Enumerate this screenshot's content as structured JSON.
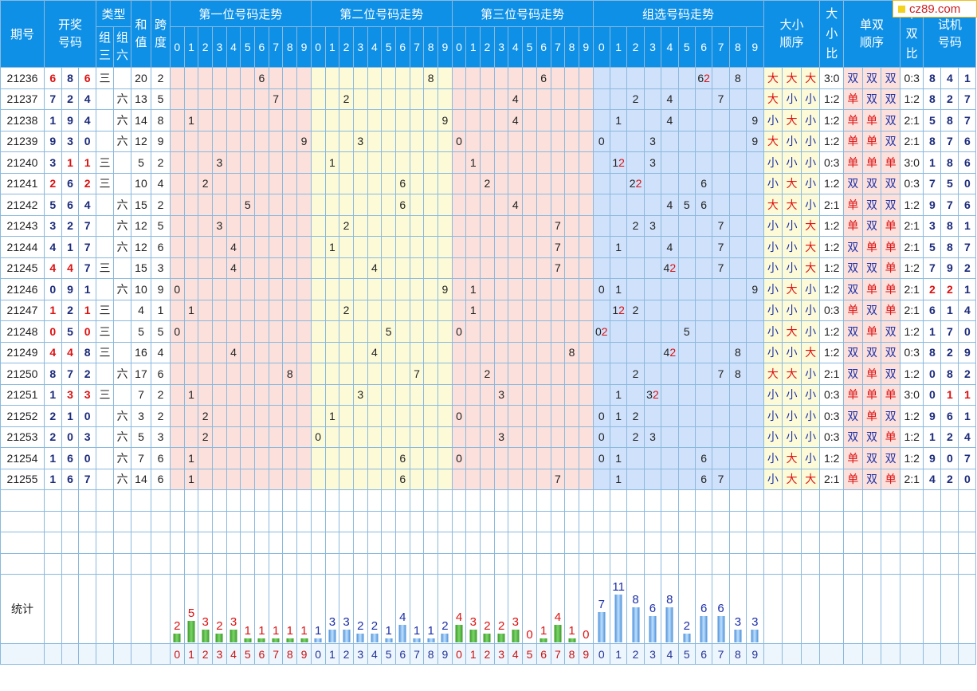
{
  "headers": {
    "period": "期号",
    "draw": "开奖号码",
    "type": "类型",
    "type_g3": "组三",
    "type_g6": "组六",
    "sum": "和值",
    "span": "跨度",
    "pos1": "第一位号码走势",
    "pos2": "第二位号码走势",
    "pos3": "第三位号码走势",
    "group": "组选号码走势",
    "dx_order": "大小顺序",
    "dx_ratio": "大小比",
    "ds_order": "单双顺序",
    "ds_ratio": "单双比",
    "trial": "试机号码",
    "digits": [
      "0",
      "1",
      "2",
      "3",
      "4",
      "5",
      "6",
      "7",
      "8",
      "9"
    ]
  },
  "logo_text": "cz89.com",
  "stat_label": "统计",
  "rows": [
    {
      "p": "21236",
      "d": [
        "6",
        "8",
        "6"
      ],
      "dr": [
        1,
        0,
        1
      ],
      "g3": "三",
      "g6": "",
      "sum": "20",
      "span": "2",
      "grp": {
        "6": [
          "6",
          "2"
        ],
        "8": [
          "8"
        ]
      },
      "dx": [
        "大",
        "大",
        "大"
      ],
      "dxr": "3:0",
      "ds": [
        "双",
        "双",
        "双"
      ],
      "dsr": "0:3",
      "sj": [
        "8",
        "4",
        "1"
      ],
      "sjr": [
        0,
        0,
        0
      ]
    },
    {
      "p": "21237",
      "d": [
        "7",
        "2",
        "4"
      ],
      "dr": [
        0,
        0,
        0
      ],
      "g3": "",
      "g6": "六",
      "sum": "13",
      "span": "5",
      "grp": {
        "2": [
          "2"
        ],
        "4": [
          "4"
        ],
        "7": [
          "7"
        ]
      },
      "dx": [
        "大",
        "小",
        "小"
      ],
      "dxr": "1:2",
      "ds": [
        "单",
        "双",
        "双"
      ],
      "dsr": "1:2",
      "sj": [
        "8",
        "2",
        "7"
      ],
      "sjr": [
        0,
        0,
        0
      ]
    },
    {
      "p": "21238",
      "d": [
        "1",
        "9",
        "4"
      ],
      "dr": [
        0,
        0,
        0
      ],
      "g3": "",
      "g6": "六",
      "sum": "14",
      "span": "8",
      "grp": {
        "1": [
          "1"
        ],
        "4": [
          "4"
        ],
        "9": [
          "9"
        ]
      },
      "dx": [
        "小",
        "大",
        "小"
      ],
      "dxr": "1:2",
      "ds": [
        "单",
        "单",
        "双"
      ],
      "dsr": "2:1",
      "sj": [
        "5",
        "8",
        "7"
      ],
      "sjr": [
        0,
        0,
        0
      ]
    },
    {
      "p": "21239",
      "d": [
        "9",
        "3",
        "0"
      ],
      "dr": [
        0,
        0,
        0
      ],
      "g3": "",
      "g6": "六",
      "sum": "12",
      "span": "9",
      "grp": {
        "0": [
          "0"
        ],
        "3": [
          "3"
        ],
        "9": [
          "9"
        ]
      },
      "dx": [
        "大",
        "小",
        "小"
      ],
      "dxr": "1:2",
      "ds": [
        "单",
        "单",
        "双"
      ],
      "dsr": "2:1",
      "sj": [
        "8",
        "7",
        "6"
      ],
      "sjr": [
        0,
        0,
        0
      ]
    },
    {
      "p": "21240",
      "d": [
        "3",
        "1",
        "1"
      ],
      "dr": [
        0,
        1,
        1
      ],
      "g3": "三",
      "g6": "",
      "sum": "5",
      "span": "2",
      "grp": {
        "1": [
          "1",
          "2"
        ],
        "3": [
          "3"
        ]
      },
      "dx": [
        "小",
        "小",
        "小"
      ],
      "dxr": "0:3",
      "ds": [
        "单",
        "单",
        "单"
      ],
      "dsr": "3:0",
      "sj": [
        "1",
        "8",
        "6"
      ],
      "sjr": [
        0,
        0,
        0
      ]
    },
    {
      "p": "21241",
      "d": [
        "2",
        "6",
        "2"
      ],
      "dr": [
        1,
        0,
        1
      ],
      "g3": "三",
      "g6": "",
      "sum": "10",
      "span": "4",
      "grp": {
        "2": [
          "2",
          "2"
        ],
        "6": [
          "6"
        ]
      },
      "dx": [
        "小",
        "大",
        "小"
      ],
      "dxr": "1:2",
      "ds": [
        "双",
        "双",
        "双"
      ],
      "dsr": "0:3",
      "sj": [
        "7",
        "5",
        "0"
      ],
      "sjr": [
        0,
        0,
        0
      ]
    },
    {
      "p": "21242",
      "d": [
        "5",
        "6",
        "4"
      ],
      "dr": [
        0,
        0,
        0
      ],
      "g3": "",
      "g6": "六",
      "sum": "15",
      "span": "2",
      "grp": {
        "4": [
          "4"
        ],
        "5": [
          "5"
        ],
        "6": [
          "6"
        ]
      },
      "dx": [
        "大",
        "大",
        "小"
      ],
      "dxr": "2:1",
      "ds": [
        "单",
        "双",
        "双"
      ],
      "dsr": "1:2",
      "sj": [
        "9",
        "7",
        "6"
      ],
      "sjr": [
        0,
        0,
        0
      ]
    },
    {
      "p": "21243",
      "d": [
        "3",
        "2",
        "7"
      ],
      "dr": [
        0,
        0,
        0
      ],
      "g3": "",
      "g6": "六",
      "sum": "12",
      "span": "5",
      "grp": {
        "2": [
          "2"
        ],
        "3": [
          "3"
        ],
        "7": [
          "7"
        ]
      },
      "dx": [
        "小",
        "小",
        "大"
      ],
      "dxr": "1:2",
      "ds": [
        "单",
        "双",
        "单"
      ],
      "dsr": "2:1",
      "sj": [
        "3",
        "8",
        "1"
      ],
      "sjr": [
        0,
        0,
        0
      ]
    },
    {
      "p": "21244",
      "d": [
        "4",
        "1",
        "7"
      ],
      "dr": [
        0,
        0,
        0
      ],
      "g3": "",
      "g6": "六",
      "sum": "12",
      "span": "6",
      "grp": {
        "1": [
          "1"
        ],
        "4": [
          "4"
        ],
        "7": [
          "7"
        ]
      },
      "dx": [
        "小",
        "小",
        "大"
      ],
      "dxr": "1:2",
      "ds": [
        "双",
        "单",
        "单"
      ],
      "dsr": "2:1",
      "sj": [
        "5",
        "8",
        "7"
      ],
      "sjr": [
        0,
        0,
        0
      ]
    },
    {
      "p": "21245",
      "d": [
        "4",
        "4",
        "7"
      ],
      "dr": [
        1,
        1,
        0
      ],
      "g3": "三",
      "g6": "",
      "sum": "15",
      "span": "3",
      "grp": {
        "4": [
          "4",
          "2"
        ],
        "7": [
          "7"
        ]
      },
      "dx": [
        "小",
        "小",
        "大"
      ],
      "dxr": "1:2",
      "ds": [
        "双",
        "双",
        "单"
      ],
      "dsr": "1:2",
      "sj": [
        "7",
        "9",
        "2"
      ],
      "sjr": [
        0,
        0,
        0
      ]
    },
    {
      "p": "21246",
      "d": [
        "0",
        "9",
        "1"
      ],
      "dr": [
        0,
        0,
        0
      ],
      "g3": "",
      "g6": "六",
      "sum": "10",
      "span": "9",
      "grp": {
        "0": [
          "0"
        ],
        "1": [
          "1"
        ],
        "9": [
          "9"
        ]
      },
      "dx": [
        "小",
        "大",
        "小"
      ],
      "dxr": "1:2",
      "ds": [
        "双",
        "单",
        "单"
      ],
      "dsr": "2:1",
      "sj": [
        "2",
        "2",
        "1"
      ],
      "sjr": [
        1,
        1,
        0
      ]
    },
    {
      "p": "21247",
      "d": [
        "1",
        "2",
        "1"
      ],
      "dr": [
        1,
        0,
        1
      ],
      "g3": "三",
      "g6": "",
      "sum": "4",
      "span": "1",
      "grp": {
        "1": [
          "1",
          "2"
        ],
        "2": [
          "2"
        ]
      },
      "dx": [
        "小",
        "小",
        "小"
      ],
      "dxr": "0:3",
      "ds": [
        "单",
        "双",
        "单"
      ],
      "dsr": "2:1",
      "sj": [
        "6",
        "1",
        "4"
      ],
      "sjr": [
        0,
        0,
        0
      ]
    },
    {
      "p": "21248",
      "d": [
        "0",
        "5",
        "0"
      ],
      "dr": [
        1,
        0,
        1
      ],
      "g3": "三",
      "g6": "",
      "sum": "5",
      "span": "5",
      "grp": {
        "0": [
          "0",
          "2"
        ],
        "5": [
          "5"
        ]
      },
      "dx": [
        "小",
        "大",
        "小"
      ],
      "dxr": "1:2",
      "ds": [
        "双",
        "单",
        "双"
      ],
      "dsr": "1:2",
      "sj": [
        "1",
        "7",
        "0"
      ],
      "sjr": [
        0,
        0,
        0
      ]
    },
    {
      "p": "21249",
      "d": [
        "4",
        "4",
        "8"
      ],
      "dr": [
        1,
        1,
        0
      ],
      "g3": "三",
      "g6": "",
      "sum": "16",
      "span": "4",
      "grp": {
        "4": [
          "4",
          "2"
        ],
        "8": [
          "8"
        ]
      },
      "dx": [
        "小",
        "小",
        "大"
      ],
      "dxr": "1:2",
      "ds": [
        "双",
        "双",
        "双"
      ],
      "dsr": "0:3",
      "sj": [
        "8",
        "2",
        "9"
      ],
      "sjr": [
        0,
        0,
        0
      ]
    },
    {
      "p": "21250",
      "d": [
        "8",
        "7",
        "2"
      ],
      "dr": [
        0,
        0,
        0
      ],
      "g3": "",
      "g6": "六",
      "sum": "17",
      "span": "6",
      "grp": {
        "2": [
          "2"
        ],
        "7": [
          "7"
        ],
        "8": [
          "8"
        ]
      },
      "dx": [
        "大",
        "大",
        "小"
      ],
      "dxr": "2:1",
      "ds": [
        "双",
        "单",
        "双"
      ],
      "dsr": "1:2",
      "sj": [
        "0",
        "8",
        "2"
      ],
      "sjr": [
        0,
        0,
        0
      ]
    },
    {
      "p": "21251",
      "d": [
        "1",
        "3",
        "3"
      ],
      "dr": [
        0,
        1,
        1
      ],
      "g3": "三",
      "g6": "",
      "sum": "7",
      "span": "2",
      "grp": {
        "1": [
          "1"
        ],
        "3": [
          "3",
          "2"
        ]
      },
      "dx": [
        "小",
        "小",
        "小"
      ],
      "dxr": "0:3",
      "ds": [
        "单",
        "单",
        "单"
      ],
      "dsr": "3:0",
      "sj": [
        "0",
        "1",
        "1"
      ],
      "sjr": [
        0,
        1,
        1
      ]
    },
    {
      "p": "21252",
      "d": [
        "2",
        "1",
        "0"
      ],
      "dr": [
        0,
        0,
        0
      ],
      "g3": "",
      "g6": "六",
      "sum": "3",
      "span": "2",
      "grp": {
        "0": [
          "0"
        ],
        "1": [
          "1"
        ],
        "2": [
          "2"
        ]
      },
      "dx": [
        "小",
        "小",
        "小"
      ],
      "dxr": "0:3",
      "ds": [
        "双",
        "单",
        "双"
      ],
      "dsr": "1:2",
      "sj": [
        "9",
        "6",
        "1"
      ],
      "sjr": [
        0,
        0,
        0
      ]
    },
    {
      "p": "21253",
      "d": [
        "2",
        "0",
        "3"
      ],
      "dr": [
        0,
        0,
        0
      ],
      "g3": "",
      "g6": "六",
      "sum": "5",
      "span": "3",
      "grp": {
        "0": [
          "0"
        ],
        "2": [
          "2"
        ],
        "3": [
          "3"
        ]
      },
      "dx": [
        "小",
        "小",
        "小"
      ],
      "dxr": "0:3",
      "ds": [
        "双",
        "双",
        "单"
      ],
      "dsr": "1:2",
      "sj": [
        "1",
        "2",
        "4"
      ],
      "sjr": [
        0,
        0,
        0
      ]
    },
    {
      "p": "21254",
      "d": [
        "1",
        "6",
        "0"
      ],
      "dr": [
        0,
        0,
        0
      ],
      "g3": "",
      "g6": "六",
      "sum": "7",
      "span": "6",
      "grp": {
        "0": [
          "0"
        ],
        "1": [
          "1"
        ],
        "6": [
          "6"
        ]
      },
      "dx": [
        "小",
        "大",
        "小"
      ],
      "dxr": "1:2",
      "ds": [
        "单",
        "双",
        "双"
      ],
      "dsr": "1:2",
      "sj": [
        "9",
        "0",
        "7"
      ],
      "sjr": [
        0,
        0,
        0
      ]
    },
    {
      "p": "21255",
      "d": [
        "1",
        "6",
        "7"
      ],
      "dr": [
        0,
        0,
        0
      ],
      "g3": "",
      "g6": "六",
      "sum": "14",
      "span": "6",
      "grp": {
        "1": [
          "1"
        ],
        "6": [
          "6"
        ],
        "7": [
          "7"
        ]
      },
      "dx": [
        "小",
        "大",
        "大"
      ],
      "dxr": "2:1",
      "ds": [
        "单",
        "双",
        "单"
      ],
      "dsr": "2:1",
      "sj": [
        "4",
        "2",
        "0"
      ],
      "sjr": [
        0,
        0,
        0
      ]
    }
  ],
  "stats": {
    "pos1": [
      2,
      5,
      3,
      2,
      3,
      1,
      1,
      1,
      1,
      1
    ],
    "pos2": [
      1,
      3,
      3,
      2,
      2,
      1,
      4,
      1,
      1,
      2
    ],
    "pos3": [
      4,
      3,
      2,
      2,
      3,
      0,
      1,
      4,
      1,
      0
    ],
    "group": [
      7,
      11,
      8,
      6,
      8,
      2,
      6,
      6,
      3,
      3
    ]
  },
  "colors": {
    "header_bg": "#0e90e6",
    "zone1": "#fbe0dc",
    "zone2": "#fdfbd7",
    "zone4": "#cfe1fb",
    "draw_blue": "#1a2a7a",
    "highlight_red": "#dd1111",
    "small_blue": "#1b2fa8"
  }
}
